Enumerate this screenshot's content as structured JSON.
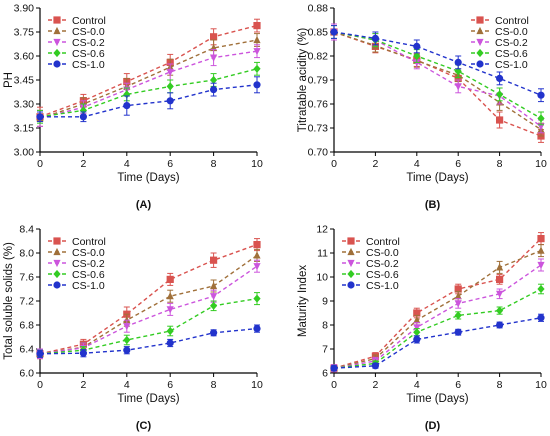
{
  "chart_data": [
    {
      "type": "line",
      "panel_label": "(A)",
      "xlabel": "Time (Days)",
      "ylabel": "PH",
      "x": [
        0,
        2,
        4,
        6,
        8,
        10
      ],
      "xlim": [
        0,
        10
      ],
      "ylim": [
        3.0,
        3.9
      ],
      "yticks": [
        "3.00",
        "3.15",
        "3.30",
        "3.45",
        "3.60",
        "3.75",
        "3.90"
      ],
      "legend_position": "top-left",
      "error_bars": true,
      "series": [
        {
          "name": "Control",
          "color": "#d9534f",
          "marker": "square",
          "values": [
            3.22,
            3.32,
            3.44,
            3.56,
            3.72,
            3.79
          ],
          "err": [
            0.06,
            0.04,
            0.05,
            0.05,
            0.05,
            0.04
          ]
        },
        {
          "name": "CS-0.0",
          "color": "#a0703a",
          "marker": "triangle-up",
          "values": [
            3.21,
            3.3,
            3.41,
            3.53,
            3.65,
            3.7
          ],
          "err": [
            0.05,
            0.04,
            0.05,
            0.05,
            0.05,
            0.04
          ]
        },
        {
          "name": "CS-0.2",
          "color": "#cc55dd",
          "marker": "triangle-down",
          "values": [
            3.21,
            3.28,
            3.39,
            3.5,
            3.59,
            3.63
          ],
          "err": [
            0.05,
            0.04,
            0.04,
            0.05,
            0.05,
            0.04
          ]
        },
        {
          "name": "CS-0.6",
          "color": "#33cc22",
          "marker": "diamond",
          "values": [
            3.22,
            3.26,
            3.36,
            3.41,
            3.45,
            3.52
          ],
          "err": [
            0.04,
            0.04,
            0.04,
            0.04,
            0.04,
            0.04
          ]
        },
        {
          "name": "CS-1.0",
          "color": "#2233cc",
          "marker": "circle",
          "values": [
            3.22,
            3.22,
            3.29,
            3.32,
            3.39,
            3.42
          ],
          "err": [
            0.03,
            0.03,
            0.06,
            0.05,
            0.04,
            0.05
          ]
        }
      ]
    },
    {
      "type": "line",
      "panel_label": "(B)",
      "xlabel": "Time (Days)",
      "ylabel": "Titratable acidity (%)",
      "x": [
        0,
        2,
        4,
        6,
        8,
        10
      ],
      "xlim": [
        0,
        10
      ],
      "ylim": [
        0.7,
        0.88
      ],
      "yticks": [
        "0.70",
        "0.73",
        "0.76",
        "0.79",
        "0.82",
        "0.85",
        "0.88"
      ],
      "legend_position": "top-right",
      "error_bars": true,
      "series": [
        {
          "name": "Control",
          "color": "#d9534f",
          "marker": "square",
          "values": [
            0.85,
            0.832,
            0.815,
            0.792,
            0.74,
            0.72
          ],
          "err": [
            0.01,
            0.008,
            0.008,
            0.008,
            0.01,
            0.008
          ]
        },
        {
          "name": "CS-0.0",
          "color": "#a0703a",
          "marker": "triangle-up",
          "values": [
            0.85,
            0.833,
            0.814,
            0.796,
            0.762,
            0.728
          ],
          "err": [
            0.01,
            0.008,
            0.008,
            0.008,
            0.01,
            0.008
          ]
        },
        {
          "name": "CS-0.2",
          "color": "#cc55dd",
          "marker": "triangle-down",
          "values": [
            0.85,
            0.84,
            0.812,
            0.782,
            0.77,
            0.732
          ],
          "err": [
            0.01,
            0.008,
            0.008,
            0.008,
            0.01,
            0.008
          ]
        },
        {
          "name": "CS-0.6",
          "color": "#33cc22",
          "marker": "diamond",
          "values": [
            0.85,
            0.84,
            0.82,
            0.801,
            0.772,
            0.742
          ],
          "err": [
            0.008,
            0.008,
            0.008,
            0.008,
            0.008,
            0.008
          ]
        },
        {
          "name": "CS-1.0",
          "color": "#2233cc",
          "marker": "circle",
          "values": [
            0.85,
            0.842,
            0.832,
            0.812,
            0.792,
            0.771
          ],
          "err": [
            0.008,
            0.008,
            0.008,
            0.008,
            0.008,
            0.008
          ]
        }
      ]
    },
    {
      "type": "line",
      "panel_label": "(C)",
      "xlabel": "Time (Days)",
      "ylabel": "Total soluble solids (%)",
      "x": [
        0,
        2,
        4,
        6,
        8,
        10
      ],
      "xlim": [
        0,
        10
      ],
      "ylim": [
        6.0,
        8.4
      ],
      "yticks": [
        "6.0",
        "6.4",
        "6.8",
        "7.2",
        "7.6",
        "8.0",
        "8.4"
      ],
      "legend_position": "top-left",
      "error_bars": true,
      "series": [
        {
          "name": "Control",
          "color": "#d9534f",
          "marker": "square",
          "values": [
            6.32,
            6.48,
            6.98,
            7.56,
            7.88,
            8.14
          ],
          "err": [
            0.08,
            0.08,
            0.12,
            0.1,
            0.12,
            0.1
          ]
        },
        {
          "name": "CS-0.0",
          "color": "#a0703a",
          "marker": "triangle-up",
          "values": [
            6.32,
            6.43,
            6.88,
            7.28,
            7.45,
            7.96
          ],
          "err": [
            0.08,
            0.08,
            0.1,
            0.1,
            0.1,
            0.1
          ]
        },
        {
          "name": "CS-0.2",
          "color": "#cc55dd",
          "marker": "triangle-down",
          "values": [
            6.32,
            6.42,
            6.78,
            7.06,
            7.28,
            7.78
          ],
          "err": [
            0.08,
            0.08,
            0.1,
            0.1,
            0.1,
            0.1
          ]
        },
        {
          "name": "CS-0.6",
          "color": "#33cc22",
          "marker": "diamond",
          "values": [
            6.32,
            6.38,
            6.55,
            6.7,
            7.12,
            7.24
          ],
          "err": [
            0.06,
            0.06,
            0.08,
            0.08,
            0.08,
            0.1
          ]
        },
        {
          "name": "CS-1.0",
          "color": "#2233cc",
          "marker": "circle",
          "values": [
            6.32,
            6.33,
            6.38,
            6.5,
            6.67,
            6.74
          ],
          "err": [
            0.06,
            0.06,
            0.06,
            0.06,
            0.05,
            0.06
          ]
        }
      ]
    },
    {
      "type": "line",
      "panel_label": "(D)",
      "xlabel": "Time (Days)",
      "ylabel": "Maturity Index",
      "x": [
        0,
        2,
        4,
        6,
        8,
        10
      ],
      "xlim": [
        0,
        10
      ],
      "ylim": [
        6,
        12
      ],
      "yticks": [
        "6",
        "7",
        "8",
        "9",
        "10",
        "11",
        "12"
      ],
      "legend_position": "top-left",
      "error_bars": true,
      "series": [
        {
          "name": "Control",
          "color": "#d9534f",
          "marker": "square",
          "values": [
            6.2,
            6.7,
            8.5,
            9.5,
            9.9,
            11.6
          ],
          "err": [
            0.15,
            0.15,
            0.2,
            0.2,
            0.2,
            0.25
          ]
        },
        {
          "name": "CS-0.0",
          "color": "#a0703a",
          "marker": "triangle-up",
          "values": [
            6.2,
            6.6,
            8.2,
            9.2,
            10.4,
            11.1
          ],
          "err": [
            0.15,
            0.15,
            0.2,
            0.2,
            0.25,
            0.25
          ]
        },
        {
          "name": "CS-0.2",
          "color": "#cc55dd",
          "marker": "triangle-down",
          "values": [
            6.2,
            6.5,
            7.9,
            8.9,
            9.3,
            10.5
          ],
          "err": [
            0.15,
            0.15,
            0.2,
            0.2,
            0.2,
            0.25
          ]
        },
        {
          "name": "CS-0.6",
          "color": "#33cc22",
          "marker": "diamond",
          "values": [
            6.2,
            6.4,
            7.7,
            8.4,
            8.6,
            9.5
          ],
          "err": [
            0.1,
            0.1,
            0.15,
            0.15,
            0.15,
            0.2
          ]
        },
        {
          "name": "CS-1.0",
          "color": "#2233cc",
          "marker": "circle",
          "values": [
            6.2,
            6.3,
            7.4,
            7.7,
            8.0,
            8.3
          ],
          "err": [
            0.1,
            0.1,
            0.15,
            0.12,
            0.12,
            0.15
          ]
        }
      ]
    }
  ]
}
